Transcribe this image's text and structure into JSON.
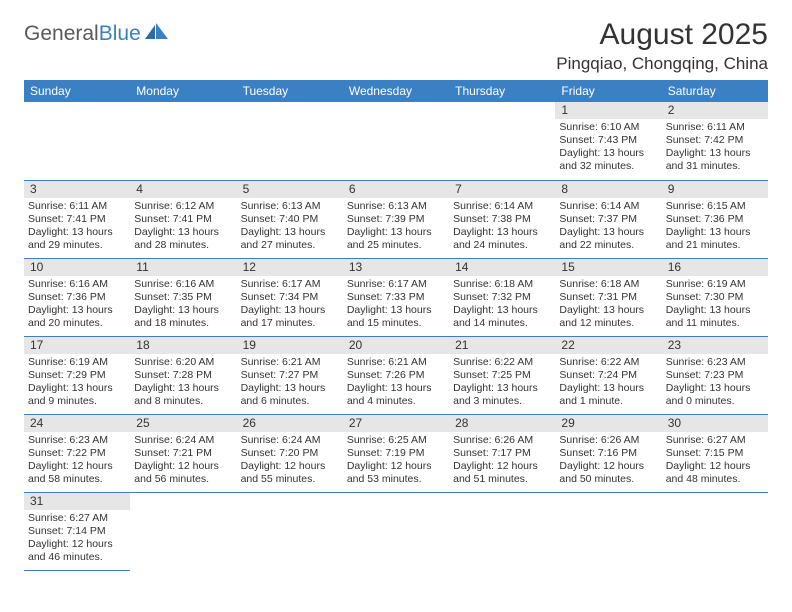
{
  "brand": {
    "part1": "General",
    "part2": "Blue"
  },
  "title": "August 2025",
  "location": "Pingqiao, Chongqing, China",
  "colors": {
    "header_bg": "#3a80c3",
    "header_text": "#ffffff",
    "daynum_bg": "#e6e6e6",
    "text": "#333333",
    "rule": "#3a80c3",
    "logo_gray": "#58595b",
    "logo_blue": "#3a80c3",
    "background": "#ffffff"
  },
  "columns": [
    "Sunday",
    "Monday",
    "Tuesday",
    "Wednesday",
    "Thursday",
    "Friday",
    "Saturday"
  ],
  "first_weekday_index": 5,
  "days": [
    {
      "n": 1,
      "sunrise": "6:10 AM",
      "sunset": "7:43 PM",
      "daylight": "13 hours and 32 minutes."
    },
    {
      "n": 2,
      "sunrise": "6:11 AM",
      "sunset": "7:42 PM",
      "daylight": "13 hours and 31 minutes."
    },
    {
      "n": 3,
      "sunrise": "6:11 AM",
      "sunset": "7:41 PM",
      "daylight": "13 hours and 29 minutes."
    },
    {
      "n": 4,
      "sunrise": "6:12 AM",
      "sunset": "7:41 PM",
      "daylight": "13 hours and 28 minutes."
    },
    {
      "n": 5,
      "sunrise": "6:13 AM",
      "sunset": "7:40 PM",
      "daylight": "13 hours and 27 minutes."
    },
    {
      "n": 6,
      "sunrise": "6:13 AM",
      "sunset": "7:39 PM",
      "daylight": "13 hours and 25 minutes."
    },
    {
      "n": 7,
      "sunrise": "6:14 AM",
      "sunset": "7:38 PM",
      "daylight": "13 hours and 24 minutes."
    },
    {
      "n": 8,
      "sunrise": "6:14 AM",
      "sunset": "7:37 PM",
      "daylight": "13 hours and 22 minutes."
    },
    {
      "n": 9,
      "sunrise": "6:15 AM",
      "sunset": "7:36 PM",
      "daylight": "13 hours and 21 minutes."
    },
    {
      "n": 10,
      "sunrise": "6:16 AM",
      "sunset": "7:36 PM",
      "daylight": "13 hours and 20 minutes."
    },
    {
      "n": 11,
      "sunrise": "6:16 AM",
      "sunset": "7:35 PM",
      "daylight": "13 hours and 18 minutes."
    },
    {
      "n": 12,
      "sunrise": "6:17 AM",
      "sunset": "7:34 PM",
      "daylight": "13 hours and 17 minutes."
    },
    {
      "n": 13,
      "sunrise": "6:17 AM",
      "sunset": "7:33 PM",
      "daylight": "13 hours and 15 minutes."
    },
    {
      "n": 14,
      "sunrise": "6:18 AM",
      "sunset": "7:32 PM",
      "daylight": "13 hours and 14 minutes."
    },
    {
      "n": 15,
      "sunrise": "6:18 AM",
      "sunset": "7:31 PM",
      "daylight": "13 hours and 12 minutes."
    },
    {
      "n": 16,
      "sunrise": "6:19 AM",
      "sunset": "7:30 PM",
      "daylight": "13 hours and 11 minutes."
    },
    {
      "n": 17,
      "sunrise": "6:19 AM",
      "sunset": "7:29 PM",
      "daylight": "13 hours and 9 minutes."
    },
    {
      "n": 18,
      "sunrise": "6:20 AM",
      "sunset": "7:28 PM",
      "daylight": "13 hours and 8 minutes."
    },
    {
      "n": 19,
      "sunrise": "6:21 AM",
      "sunset": "7:27 PM",
      "daylight": "13 hours and 6 minutes."
    },
    {
      "n": 20,
      "sunrise": "6:21 AM",
      "sunset": "7:26 PM",
      "daylight": "13 hours and 4 minutes."
    },
    {
      "n": 21,
      "sunrise": "6:22 AM",
      "sunset": "7:25 PM",
      "daylight": "13 hours and 3 minutes."
    },
    {
      "n": 22,
      "sunrise": "6:22 AM",
      "sunset": "7:24 PM",
      "daylight": "13 hours and 1 minute."
    },
    {
      "n": 23,
      "sunrise": "6:23 AM",
      "sunset": "7:23 PM",
      "daylight": "13 hours and 0 minutes."
    },
    {
      "n": 24,
      "sunrise": "6:23 AM",
      "sunset": "7:22 PM",
      "daylight": "12 hours and 58 minutes."
    },
    {
      "n": 25,
      "sunrise": "6:24 AM",
      "sunset": "7:21 PM",
      "daylight": "12 hours and 56 minutes."
    },
    {
      "n": 26,
      "sunrise": "6:24 AM",
      "sunset": "7:20 PM",
      "daylight": "12 hours and 55 minutes."
    },
    {
      "n": 27,
      "sunrise": "6:25 AM",
      "sunset": "7:19 PM",
      "daylight": "12 hours and 53 minutes."
    },
    {
      "n": 28,
      "sunrise": "6:26 AM",
      "sunset": "7:17 PM",
      "daylight": "12 hours and 51 minutes."
    },
    {
      "n": 29,
      "sunrise": "6:26 AM",
      "sunset": "7:16 PM",
      "daylight": "12 hours and 50 minutes."
    },
    {
      "n": 30,
      "sunrise": "6:27 AM",
      "sunset": "7:15 PM",
      "daylight": "12 hours and 48 minutes."
    },
    {
      "n": 31,
      "sunrise": "6:27 AM",
      "sunset": "7:14 PM",
      "daylight": "12 hours and 46 minutes."
    }
  ],
  "labels": {
    "sunrise": "Sunrise:",
    "sunset": "Sunset:",
    "daylight": "Daylight:"
  }
}
